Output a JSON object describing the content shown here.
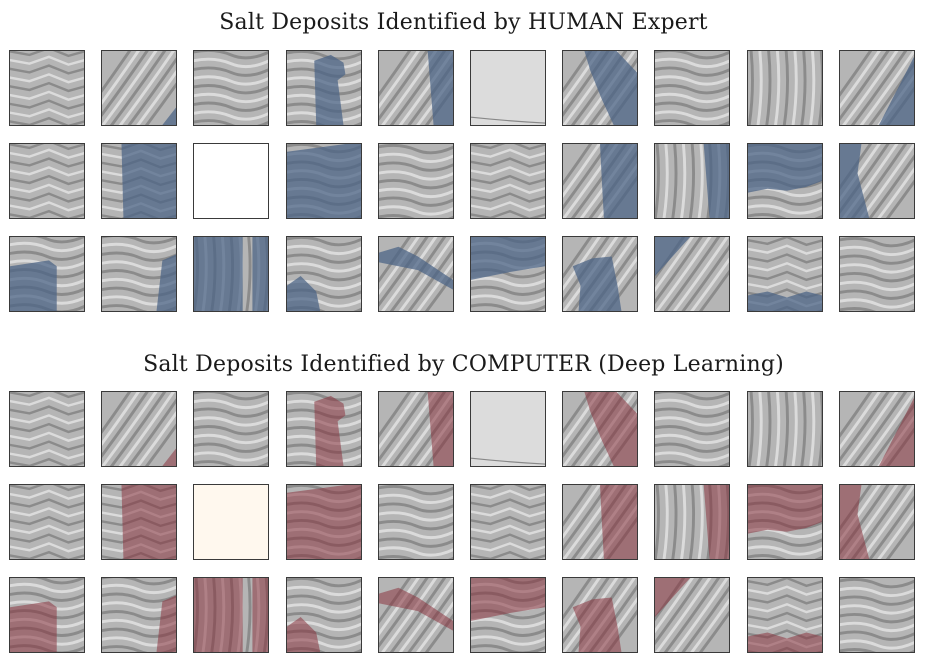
{
  "panels": [
    {
      "title": "Salt Deposits Identified by HUMAN Expert",
      "overlay_color": "#4a6285",
      "grid": {
        "rows": 3,
        "cols": 10
      }
    },
    {
      "title": "Salt Deposits Identified by COMPUTER (Deep Learning)",
      "overlay_color": "#8a3540",
      "grid": {
        "rows": 3,
        "cols": 10
      }
    }
  ],
  "tiles": [
    [
      "noise",
      "none"
    ],
    [
      "diag",
      "br-small"
    ],
    [
      "waves",
      "none"
    ],
    [
      "waves",
      "right-blob"
    ],
    [
      "diag",
      "right-strip"
    ],
    [
      "blank",
      "none"
    ],
    [
      "diag",
      "mid-diag"
    ],
    [
      "waves",
      "none"
    ],
    [
      "vert",
      "none"
    ],
    [
      "diag",
      "right-tri"
    ],
    [
      "noise",
      "none"
    ],
    [
      "noise",
      "full-left-gap"
    ],
    [
      "white",
      "none"
    ],
    [
      "waves",
      "full"
    ],
    [
      "waves",
      "none"
    ],
    [
      "noise",
      "none"
    ],
    [
      "diag",
      "right-wide"
    ],
    [
      "vert",
      "right-strip"
    ],
    [
      "waves",
      "top-wide"
    ],
    [
      "diag",
      "left-tri"
    ],
    [
      "waves",
      "bottom-rect"
    ],
    [
      "waves",
      "right-wedge"
    ],
    [
      "vert",
      "full-strip"
    ],
    [
      "waves",
      "bl-blob"
    ],
    [
      "diag",
      "band"
    ],
    [
      "waves",
      "top-band"
    ],
    [
      "diag",
      "bottom-blob"
    ],
    [
      "diag",
      "tl-tri"
    ],
    [
      "noise",
      "bottom-edge"
    ],
    [
      "waves",
      "none"
    ]
  ]
}
